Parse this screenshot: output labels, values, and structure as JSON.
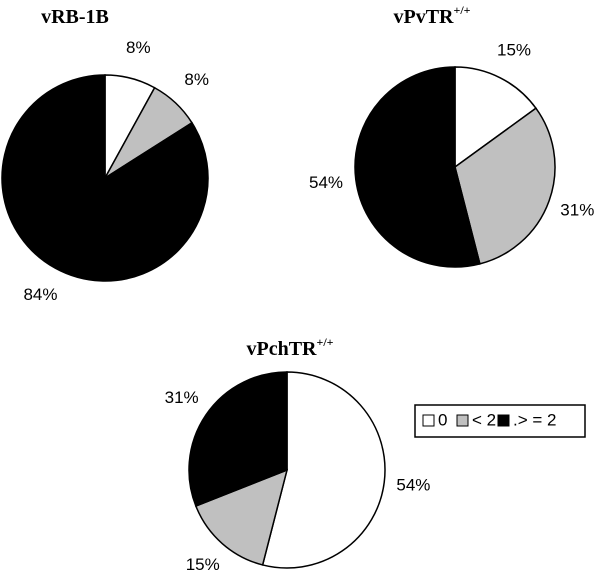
{
  "chart_data": [
    {
      "type": "pie",
      "title": "vRB-1B",
      "values": [
        8,
        8,
        84
      ],
      "value_labels": [
        "8%",
        "8%",
        "84%"
      ],
      "colors": [
        "#ffffff",
        "#c0c0c0",
        "#000000"
      ]
    },
    {
      "type": "pie",
      "title": "vPvTR",
      "title_sup": "+/+",
      "values": [
        15,
        31,
        54
      ],
      "value_labels": [
        "15%",
        "31%",
        "54%"
      ],
      "colors": [
        "#ffffff",
        "#c0c0c0",
        "#000000"
      ]
    },
    {
      "type": "pie",
      "title": "vPchTR",
      "title_sup": "+/+",
      "values": [
        54,
        15,
        31
      ],
      "value_labels": [
        "54%",
        "15%",
        "31%"
      ],
      "colors": [
        "#ffffff",
        "#c0c0c0",
        "#000000"
      ],
      "categories": [
        "0",
        "< 2",
        ".> = 2"
      ],
      "legend": "right"
    }
  ]
}
